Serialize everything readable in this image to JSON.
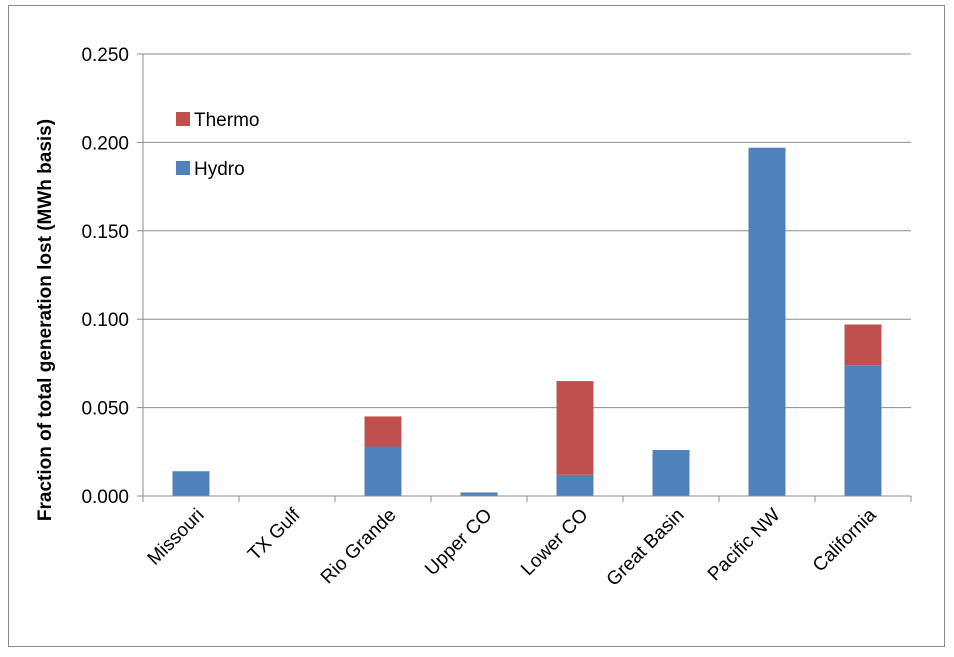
{
  "chart_data": {
    "type": "bar",
    "stacked": true,
    "title": "",
    "xlabel": "",
    "ylabel": "Fraction of total generation lost (MWh basis)",
    "ylim": [
      0,
      0.25
    ],
    "yticks": [
      "0.000",
      "0.050",
      "0.100",
      "0.150",
      "0.200",
      "0.250"
    ],
    "grid": true,
    "legend_position": "top-left",
    "categories": [
      "Missouri",
      "TX Gulf",
      "Rio Grande",
      "Upper CO",
      "Lower CO",
      "Great Basin",
      "Pacific NW",
      "California"
    ],
    "series": [
      {
        "name": "Hydro",
        "color": "#4f81bd",
        "values": [
          0.014,
          0.0,
          0.028,
          0.002,
          0.012,
          0.026,
          0.197,
          0.074
        ]
      },
      {
        "name": "Thermo",
        "color": "#c0504d",
        "values": [
          0.0,
          0.0,
          0.017,
          0.0,
          0.053,
          0.0,
          0.0,
          0.023
        ]
      }
    ]
  }
}
